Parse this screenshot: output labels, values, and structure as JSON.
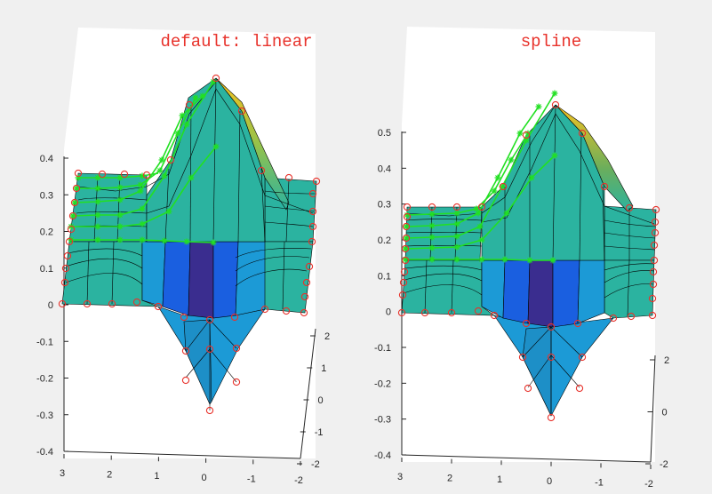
{
  "chart_data": [
    {
      "type": "surface3d",
      "title": "default: linear",
      "zlim": [
        -0.4,
        0.4
      ],
      "z_ticks": [
        "0.4",
        "0.3",
        "0.2",
        "0.1",
        "0",
        "-0.1",
        "-0.2",
        "-0.3",
        "-0.4"
      ],
      "x_ticks": [
        "3",
        "2",
        "1",
        "0",
        "-1",
        "-2"
      ],
      "y_ticks": [
        "2",
        "1",
        "0",
        "-1",
        "-2"
      ],
      "peak": 0.4,
      "trough": -0.3,
      "grid": false
    },
    {
      "type": "surface3d",
      "title": "spline",
      "zlim": [
        -0.4,
        0.5
      ],
      "z_ticks": [
        "0.5",
        "0.4",
        "0.3",
        "0.2",
        "0.1",
        "0",
        "-0.1",
        "-0.2",
        "-0.3",
        "-0.4"
      ],
      "x_ticks": [
        "3",
        "2",
        "1",
        "0",
        "-1",
        "-2"
      ],
      "y_ticks": [
        "2",
        "0",
        "-2"
      ],
      "peak": 0.57,
      "trough": -0.3,
      "grid": false
    }
  ],
  "colors": {
    "surface_main": "#2bb3a0",
    "surface_mid": "#1c9ad6",
    "surface_blue": "#1a5fe0",
    "surface_dark": "#3a2d8f",
    "surface_peak": "#f6c320",
    "markers": "#e8322b",
    "interp_lines": "#22e022"
  }
}
